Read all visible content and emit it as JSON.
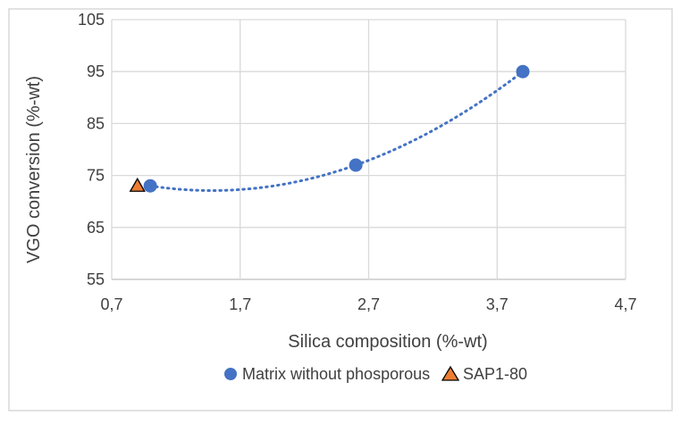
{
  "chart_data": {
    "type": "scatter",
    "title": "",
    "xlabel": "Silica composition (%-wt)",
    "ylabel": "VGO conversion (%-wt)",
    "xlim": [
      0.7,
      4.7
    ],
    "ylim": [
      55,
      105
    ],
    "x_ticks": [
      "0,7",
      "1,7",
      "2,7",
      "3,7",
      "4,7"
    ],
    "y_ticks": [
      "55",
      "65",
      "75",
      "85",
      "95",
      "105"
    ],
    "grid": true,
    "legend_position": "bottom",
    "series": [
      {
        "name": "Matrix without phosporous",
        "marker": "circle",
        "color": "#4472c4",
        "x": [
          1.0,
          2.6,
          3.9
        ],
        "y": [
          73,
          77,
          95
        ],
        "trendline": "polynomial-2"
      },
      {
        "name": "SAP1-80",
        "marker": "triangle",
        "color": "#ed7d31",
        "x": [
          0.9
        ],
        "y": [
          73
        ]
      }
    ]
  }
}
